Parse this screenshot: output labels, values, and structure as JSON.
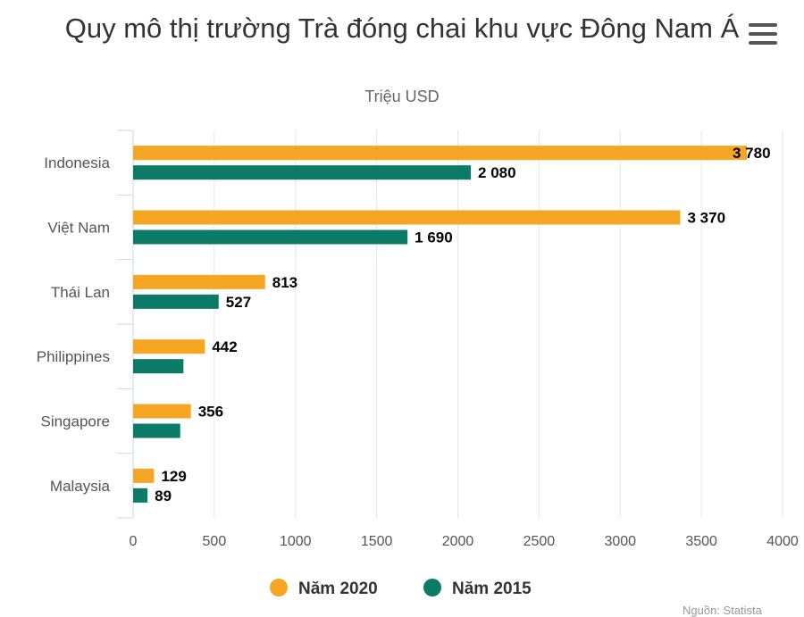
{
  "header": {
    "title": "Quy mô thị trường Trà đóng chai khu vực Đông Nam Á",
    "subtitle": "Triệu USD",
    "menu_icon": "hamburger-menu-icon"
  },
  "chart_data": {
    "type": "bar",
    "orientation": "horizontal",
    "title": "Quy mô thị trường Trà đóng chai khu vực Đông Nam Á",
    "subtitle": "Triệu USD",
    "categories": [
      "Indonesia",
      "Việt Nam",
      "Thái Lan",
      "Philippines",
      "Singapore",
      "Malaysia"
    ],
    "series": [
      {
        "name": "Năm 2020",
        "color": "#f5a623",
        "values": [
          3780,
          3370,
          813,
          442,
          356,
          129
        ],
        "labels": [
          "3 780",
          "3 370",
          "813",
          "442",
          "356",
          "129"
        ]
      },
      {
        "name": "Năm 2015",
        "color": "#0b7a66",
        "values": [
          2080,
          1690,
          527,
          310,
          290,
          89
        ],
        "labels": [
          "2 080",
          "1 690",
          "527",
          "",
          "",
          "89"
        ]
      }
    ],
    "xlim": [
      0,
      4000
    ],
    "xticks": [
      0,
      500,
      1000,
      1500,
      2000,
      2500,
      3000,
      3500,
      4000
    ],
    "grid": true,
    "legend_position": "bottom-center"
  },
  "footer": {
    "source": "Nguồn: Statista"
  }
}
